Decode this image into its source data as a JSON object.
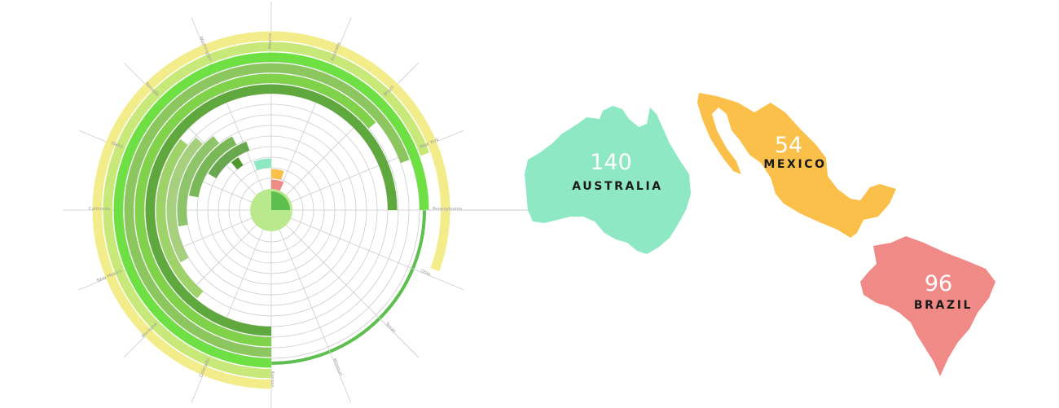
{
  "chart_data": {
    "type": "radial-bar",
    "axis_labels": [
      "Mexico",
      "Australia",
      "Brazil",
      "New York",
      "Pennsylvania",
      "Ohio",
      "Texas",
      "Missouri",
      "Kansas",
      "Colorado",
      "Montana",
      "New Mexico",
      "California",
      "Idaho",
      "Nevada",
      "Washington"
    ],
    "series": [
      {
        "label": "Brazil",
        "value": 96,
        "color": "#f08a86"
      },
      {
        "label": "Mexico",
        "value": 54,
        "color": "#fbc04a"
      },
      {
        "label": "Australia",
        "value": 140,
        "color": "#8fe8c4"
      },
      {
        "label": "Washington",
        "value": 8,
        "color": "#4e9a2c"
      },
      {
        "label": "Nevada",
        "value": 40,
        "color": "#6aa84f"
      },
      {
        "label": "Idaho",
        "value": 52,
        "color": "#7ab857"
      },
      {
        "label": "California",
        "value": 62,
        "color": "#8ec46a"
      },
      {
        "label": "New Mexico",
        "value": 74,
        "color": "#a6d07e"
      },
      {
        "label": "Montana",
        "value": 88,
        "color": "#9ed36a"
      },
      {
        "label": "Colorado",
        "value": 270,
        "color": "#5ea83d"
      },
      {
        "label": "Kansas",
        "value": 230,
        "color": "#7fd24a"
      },
      {
        "label": "Missouri",
        "value": 250,
        "color": "#8cc65e"
      },
      {
        "label": "Texas",
        "value": 270,
        "color": "#6ee044"
      },
      {
        "label": "Ohio",
        "value": 250,
        "color": "#c9e87a"
      },
      {
        "label": "Pennsylvania",
        "value": 290,
        "color": "#f2ed8a"
      },
      {
        "label": "New York",
        "value": 0,
        "color": "#f2ed8a"
      }
    ],
    "countries": [
      {
        "name": "AUSTRALIA",
        "value": "140",
        "color": "#8fe8c4"
      },
      {
        "name": "MEXICO",
        "value": "54",
        "color": "#fbc04a"
      },
      {
        "name": "BRAZIL",
        "value": "96",
        "color": "#f08a86"
      }
    ],
    "colors": {
      "outer_ring": "#5cbf4e",
      "grid": "#cccccc",
      "center_disc": "#b9e98c",
      "center_wedge": "#5cbf4e"
    }
  }
}
